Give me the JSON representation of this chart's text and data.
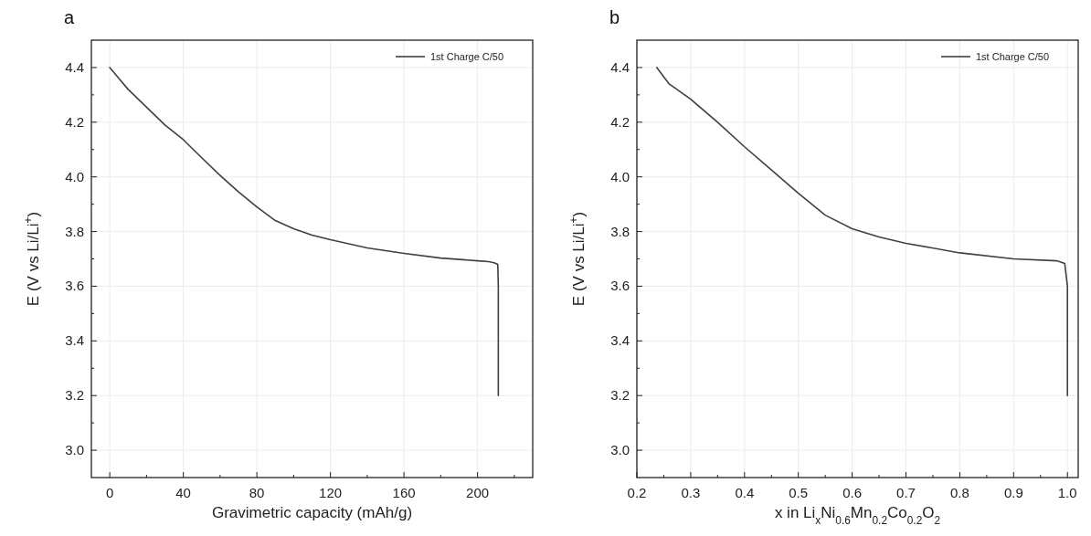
{
  "chart_data": [
    {
      "type": "line",
      "title": "a",
      "xlabel": "Gravimetric capacity (mAh/g)",
      "ylabel": "E (V vs Li/Li$^{+}$)",
      "xlim": [
        -10,
        230
      ],
      "ylim": [
        2.9,
        4.5
      ],
      "xticks": [
        0,
        {
          "value": 20,
          "label": null
        },
        40,
        {
          "value": 60,
          "label": null
        },
        80,
        {
          "value": 100,
          "label": null
        },
        120,
        {
          "value": 140,
          "label": null
        },
        160,
        {
          "value": 180,
          "label": null
        },
        200,
        {
          "value": 220,
          "label": null
        }
      ],
      "yticks": [
        {
          "value": 3.0,
          "label": "3.0"
        },
        {
          "value": 3.1,
          "label": null
        },
        3.2,
        {
          "value": 3.3,
          "label": null
        },
        3.4,
        {
          "value": 3.5,
          "label": null
        },
        3.6,
        {
          "value": 3.7,
          "label": null
        },
        3.8,
        {
          "value": 3.9,
          "label": null
        },
        {
          "value": 4.0,
          "label": "4.0"
        },
        {
          "value": 4.1,
          "label": null
        },
        4.2,
        {
          "value": 4.3,
          "label": null
        },
        4.4
      ],
      "grid": true,
      "legend": "top right",
      "series": [
        {
          "name": "1st Charge C/50",
          "color": "#404040",
          "x": [
            0,
            5,
            10,
            20,
            30,
            40,
            50,
            60,
            70,
            80,
            90,
            100,
            110,
            120,
            140,
            160,
            180,
            200,
            206,
            209,
            211,
            211.3,
            211.3
          ],
          "values": [
            4.4,
            4.36,
            4.32,
            4.255,
            4.19,
            4.136,
            4.07,
            4.005,
            3.945,
            3.89,
            3.84,
            3.81,
            3.787,
            3.77,
            3.74,
            3.72,
            3.703,
            3.693,
            3.69,
            3.686,
            3.68,
            3.6,
            3.2
          ]
        }
      ]
    },
    {
      "type": "line",
      "title": "b",
      "xlabel": "x in Li$_{x}$Ni$_{0.6}$Mn$_{0.2}$Co$_{0.2}$O$_{2}$",
      "ylabel": "E (V vs Li/Li$^{+}$)",
      "xlim": [
        0.2,
        1.02
      ],
      "ylim": [
        2.9,
        4.5
      ],
      "xticks": [
        0.2,
        {
          "value": 0.25,
          "label": null
        },
        0.3,
        {
          "value": 0.35,
          "label": null
        },
        0.4,
        {
          "value": 0.45,
          "label": null
        },
        0.5,
        {
          "value": 0.55,
          "label": null
        },
        0.6,
        {
          "value": 0.65,
          "label": null
        },
        0.7,
        {
          "value": 0.75,
          "label": null
        },
        0.8,
        {
          "value": 0.85,
          "label": null
        },
        0.9,
        {
          "value": 0.95,
          "label": null
        },
        {
          "value": 1.0,
          "label": "1.0"
        }
      ],
      "yticks": [
        {
          "value": 3.0,
          "label": "3.0"
        },
        {
          "value": 3.1,
          "label": null
        },
        3.2,
        {
          "value": 3.3,
          "label": null
        },
        3.4,
        {
          "value": 3.5,
          "label": null
        },
        3.6,
        {
          "value": 3.7,
          "label": null
        },
        3.8,
        {
          "value": 3.9,
          "label": null
        },
        {
          "value": 4.0,
          "label": "4.0"
        },
        {
          "value": 4.1,
          "label": null
        },
        4.2,
        {
          "value": 4.3,
          "label": null
        },
        4.4
      ],
      "grid": true,
      "legend": "top right",
      "series": [
        {
          "name": "1st Charge C/50",
          "color": "#404040",
          "x": [
            0.237,
            0.26,
            0.3,
            0.35,
            0.4,
            0.45,
            0.5,
            0.55,
            0.6,
            0.65,
            0.7,
            0.8,
            0.9,
            0.98,
            0.995,
            1.0,
            1.0
          ],
          "values": [
            4.4,
            4.34,
            4.284,
            4.2,
            4.11,
            4.025,
            3.94,
            3.86,
            3.81,
            3.78,
            3.757,
            3.722,
            3.7,
            3.693,
            3.683,
            3.6,
            3.2
          ]
        }
      ]
    }
  ]
}
